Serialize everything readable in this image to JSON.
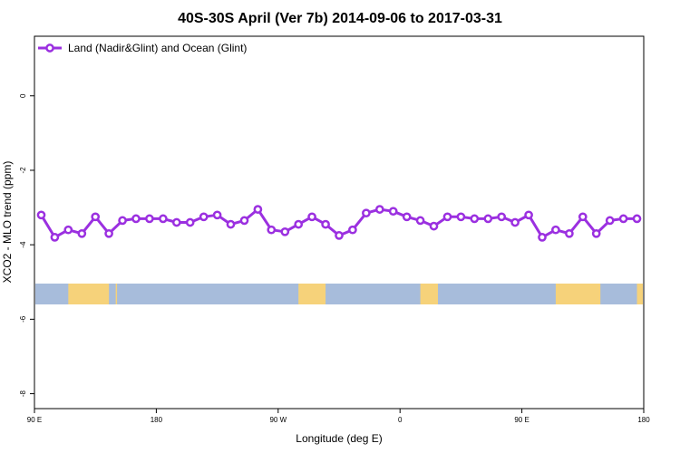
{
  "chart_data": {
    "type": "line",
    "title": "40S-30S April (Ver 7b)   2014-09-06 to 2017-03-31",
    "xlabel": "Longitude (deg E)",
    "ylabel": "XCO2 - MLO trend (ppm)",
    "x_ticks": [
      {
        "value": 90,
        "label": "90 E"
      },
      {
        "value": 180,
        "label": "180"
      },
      {
        "value": 270,
        "label": "90 W"
      },
      {
        "value": 360,
        "label": "0"
      },
      {
        "value": 450,
        "label": "90 E"
      },
      {
        "value": 540,
        "label": "180"
      }
    ],
    "xlim": [
      90,
      540
    ],
    "ylim": [
      -8.4,
      1.6
    ],
    "y_ticks": [
      0,
      -2,
      -4,
      -6,
      -8
    ],
    "legend": {
      "position": "top-left",
      "entries": [
        "Land (Nadir&Glint) and Ocean (Glint)"
      ]
    },
    "series": [
      {
        "name": "Land (Nadir&Glint) and Ocean (Glint)",
        "color": "#9b30e0",
        "x": [
          95,
          105,
          115,
          125,
          135,
          145,
          155,
          165,
          175,
          185,
          195,
          205,
          215,
          225,
          235,
          245,
          255,
          265,
          275,
          285,
          295,
          305,
          315,
          325,
          335,
          345,
          355,
          365,
          375,
          385,
          395,
          405,
          415,
          425,
          435,
          445,
          455,
          465,
          475,
          485,
          495,
          505,
          515,
          525,
          535
        ],
        "values": [
          -3.2,
          -3.8,
          -3.6,
          -3.7,
          -3.25,
          -3.7,
          -3.35,
          -3.3,
          -3.3,
          -3.3,
          -3.4,
          -3.4,
          -3.25,
          -3.2,
          -3.45,
          -3.35,
          -3.05,
          -3.6,
          -3.65,
          -3.45,
          -3.25,
          -3.45,
          -3.75,
          -3.6,
          -3.15,
          -3.05,
          -3.1,
          -3.25,
          -3.35,
          -3.5,
          -3.25,
          -3.25,
          -3.3,
          -3.3,
          -3.25,
          -3.4,
          -3.2,
          -3.8,
          -3.6,
          -3.7,
          -3.25,
          -3.7,
          -3.35,
          -3.3,
          -3.3
        ]
      }
    ],
    "map_strip": {
      "ocean_color": "#a7bcdb",
      "land_color": "#f6d27a",
      "land_ranges": [
        [
          115,
          145
        ],
        [
          150,
          151
        ],
        [
          285,
          305
        ],
        [
          375,
          388
        ],
        [
          475,
          508
        ],
        [
          535,
          540
        ]
      ]
    },
    "grid": false
  }
}
